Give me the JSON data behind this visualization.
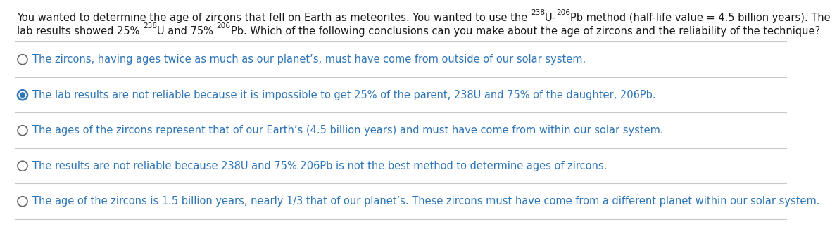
{
  "background_color": "#ffffff",
  "options": [
    "The zircons, having ages twice as much as our planet’s, must have come from outside of our solar system.",
    "The lab results are not reliable because it is impossible to get 25% of the parent, 238U and 75% of the daughter, 206Pb.",
    "The ages of the zircons represent that of our Earth’s (4.5 billion years) and must have come from within our solar system.",
    "The results are not reliable because 238U and 75% 206Pb is not the best method to determine ages of zircons.",
    "The age of the zircons is 1.5 billion years, nearly 1/3 that of our planet’s. These zircons must have come from a different planet within our solar system."
  ],
  "selected_index": 1,
  "text_color": "#2e75b6",
  "question_color": "#1a1a1a",
  "circle_color_empty": "#666666",
  "circle_color_selected": "#2e75b6",
  "separator_color": "#c8c8c8",
  "font_size_question": 10.5,
  "font_size_options": 10.5
}
